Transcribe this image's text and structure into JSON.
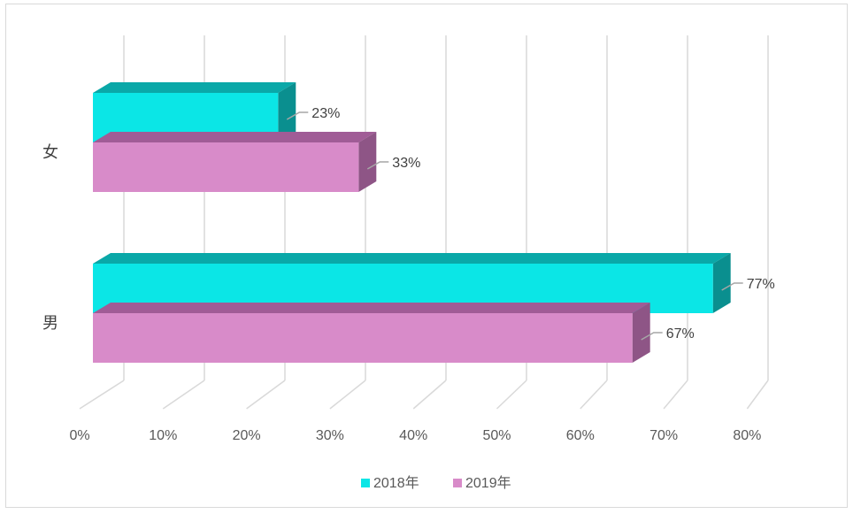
{
  "chart_data": {
    "type": "bar",
    "orientation": "horizontal",
    "style": "3d",
    "categories": [
      "女",
      "男"
    ],
    "series": [
      {
        "name": "2018年",
        "values": [
          23,
          77
        ],
        "color": "#0be6e6",
        "top_color": "#0aa8a8",
        "side_color": "#0a8f8f"
      },
      {
        "name": "2019年",
        "values": [
          33,
          67
        ],
        "color": "#d88bc9",
        "top_color": "#a05c96",
        "side_color": "#8e5586"
      }
    ],
    "data_labels": [
      [
        "23%",
        "77%"
      ],
      [
        "33%",
        "67%"
      ]
    ],
    "xlim": [
      0,
      80
    ],
    "xticks": [
      "0%",
      "10%",
      "20%",
      "30%",
      "40%",
      "50%",
      "60%",
      "70%",
      "80%"
    ],
    "grid": true,
    "legend_position": "bottom"
  }
}
